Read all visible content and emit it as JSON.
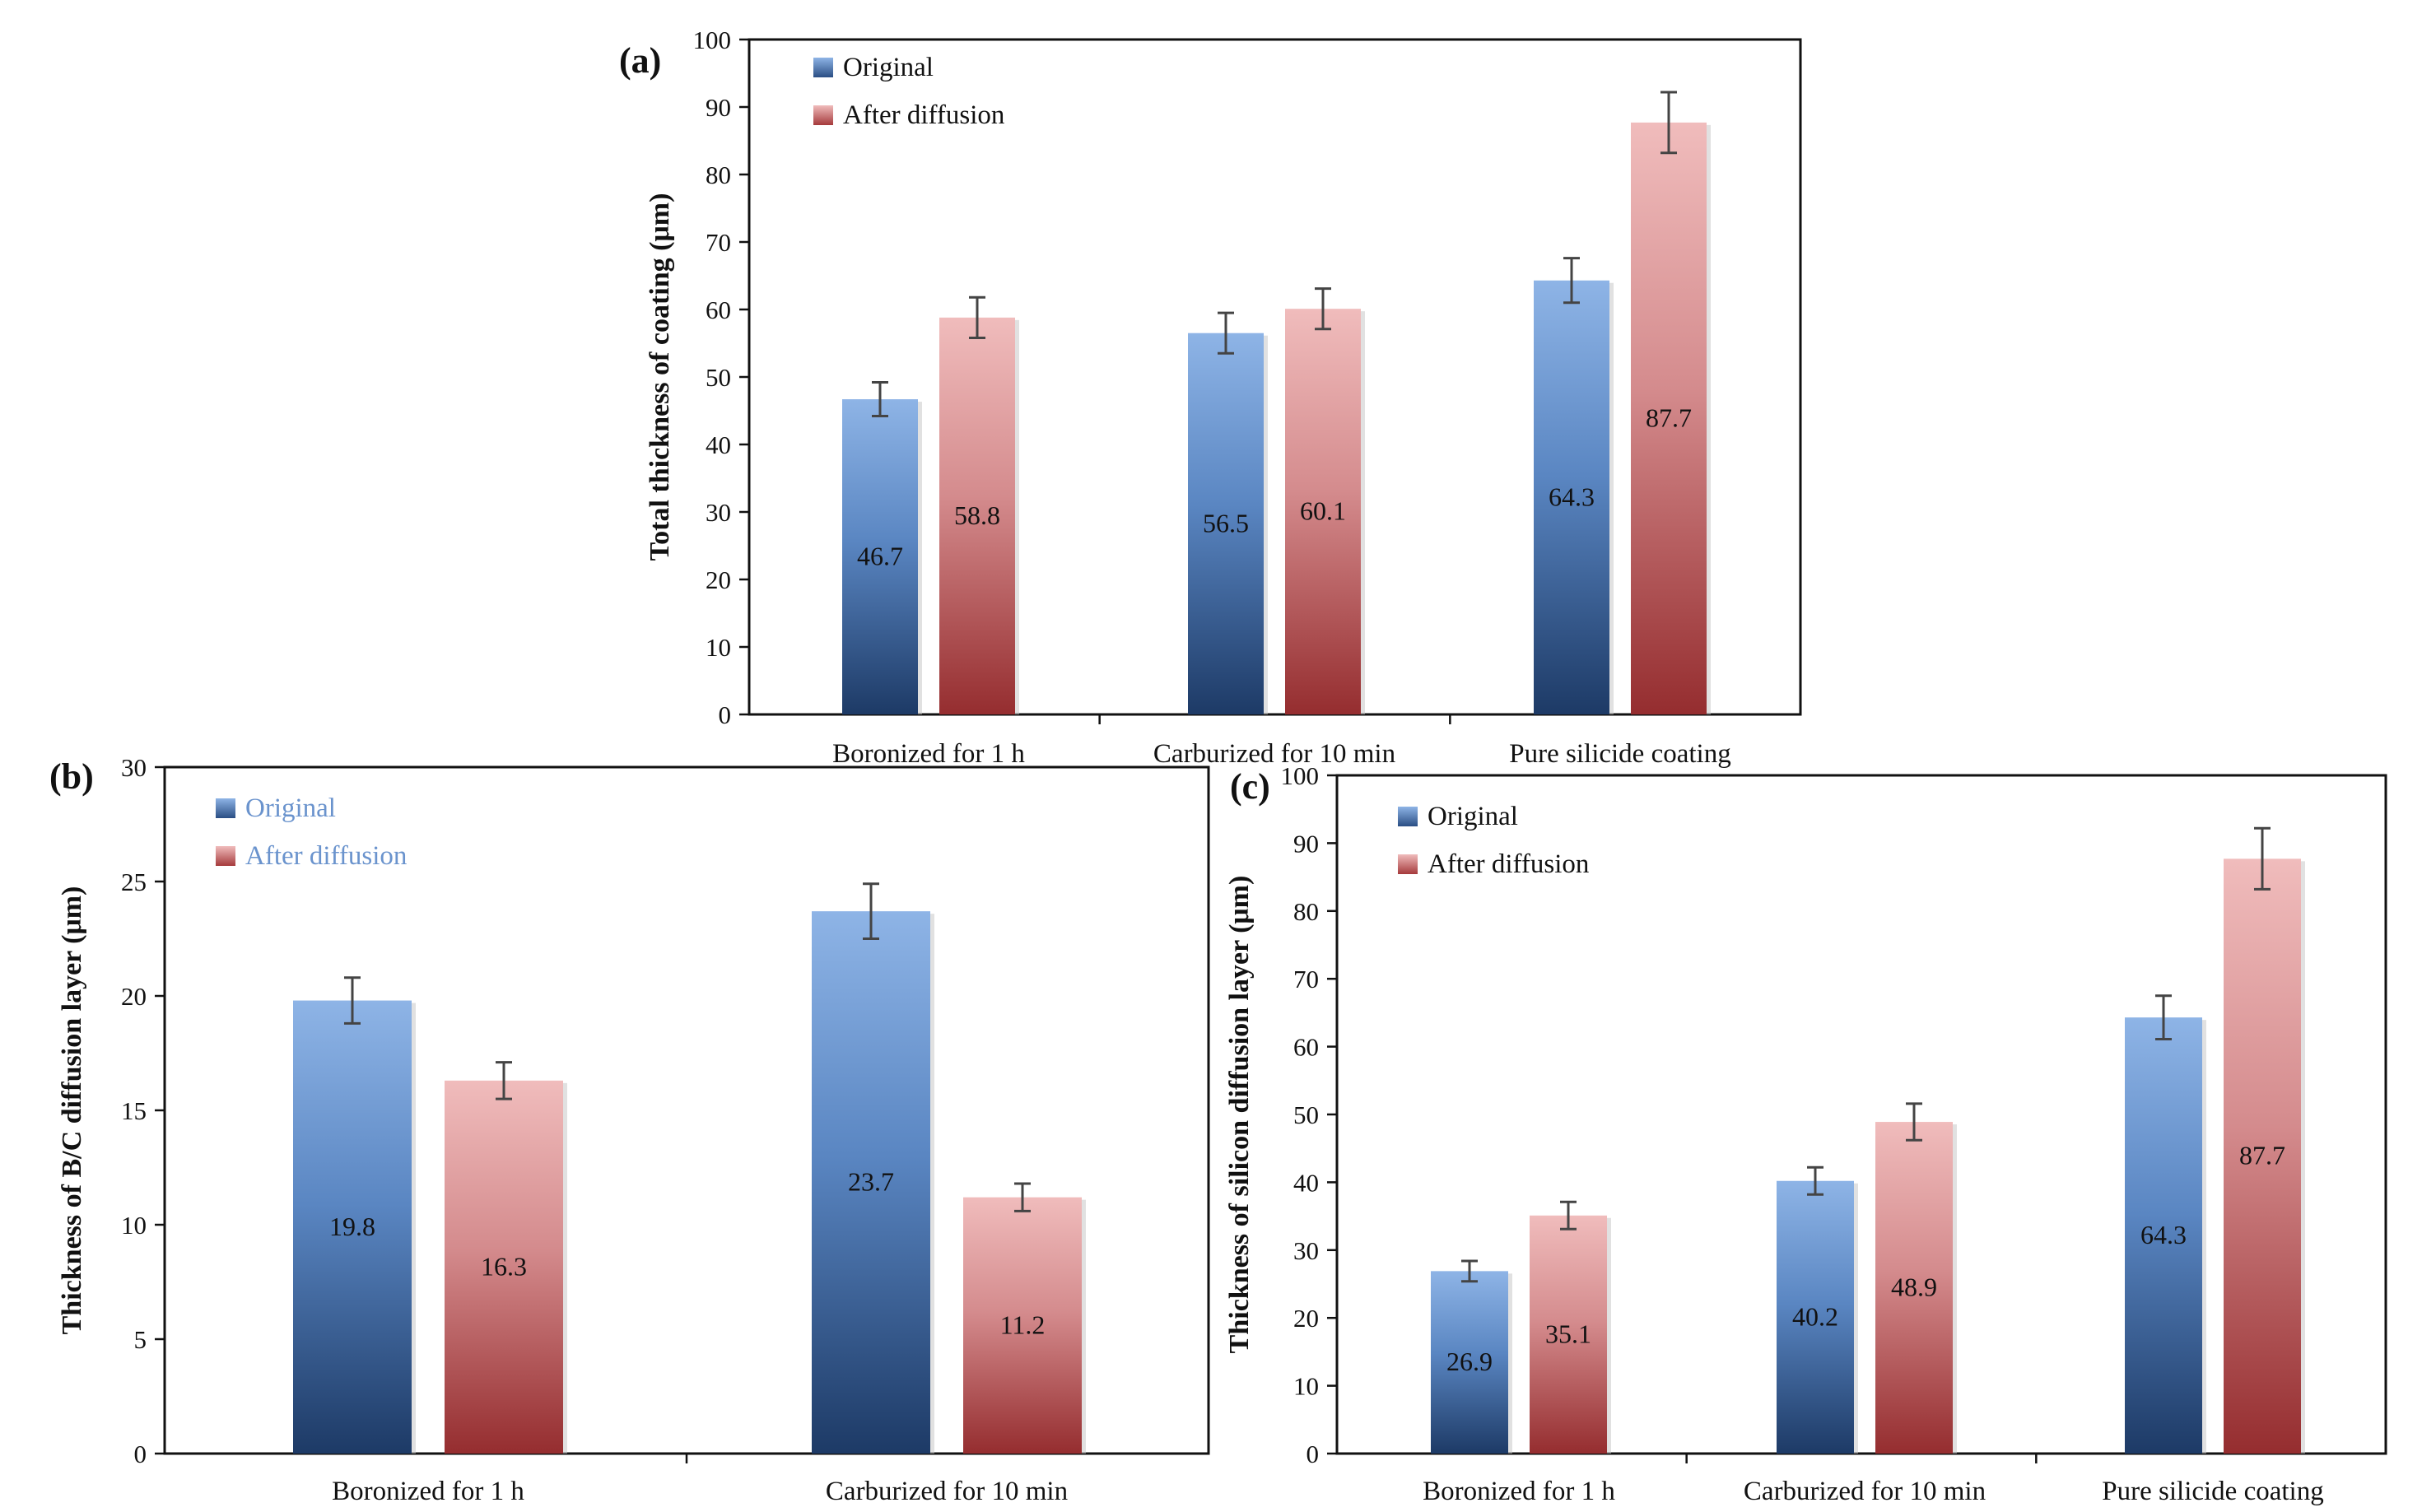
{
  "chart_data": [
    {
      "panel": "(a)",
      "type": "bar",
      "categories": [
        "Boronized for 1 h",
        "Carburized for 10 min",
        "Pure silicide coating"
      ],
      "series": [
        {
          "name": "Original",
          "values": [
            46.7,
            56.5,
            64.3
          ],
          "errors": [
            2.5,
            3.0,
            3.3
          ],
          "color": "#5b8fd0"
        },
        {
          "name": "After diffusion",
          "values": [
            58.8,
            60.1,
            87.7
          ],
          "errors": [
            3.0,
            3.0,
            4.5
          ],
          "color": "#d07d80"
        }
      ],
      "value_labels": [
        "46.7",
        "56.5",
        "64.3",
        "58.8",
        "60.1",
        "87.7"
      ],
      "ylabel": "Total thickness of coating (μm)",
      "yticks": [
        "0",
        "10",
        "20",
        "30",
        "40",
        "50",
        "60",
        "70",
        "80",
        "90",
        "100"
      ],
      "ylim": [
        0,
        100
      ],
      "legend_text_color": "#111111"
    },
    {
      "panel": "(b)",
      "type": "bar",
      "categories": [
        "Boronized for 1 h",
        "Carburized for 10 min"
      ],
      "series": [
        {
          "name": "Original",
          "values": [
            19.8,
            23.7
          ],
          "errors": [
            1.0,
            1.2
          ],
          "color": "#5b8fd0"
        },
        {
          "name": "After diffusion",
          "values": [
            16.3,
            11.2
          ],
          "errors": [
            0.8,
            0.6
          ],
          "color": "#d07d80"
        }
      ],
      "value_labels": [
        "19.8",
        "23.7",
        "16.3",
        "11.2"
      ],
      "ylabel": "Thickness of B/C diffusion layer (μm)",
      "yticks": [
        "0",
        "5",
        "10",
        "15",
        "20",
        "25",
        "30"
      ],
      "ylim": [
        0,
        30
      ],
      "legend_text_color": "#6a93cd"
    },
    {
      "panel": "(c)",
      "type": "bar",
      "categories": [
        "Boronized for 1 h",
        "Carburized for 10 min",
        "Pure silicide coating"
      ],
      "series": [
        {
          "name": "Original",
          "values": [
            26.9,
            40.2,
            64.3
          ],
          "errors": [
            1.5,
            2.0,
            3.2
          ],
          "color": "#5b8fd0"
        },
        {
          "name": "After diffusion",
          "values": [
            35.1,
            48.9,
            87.7
          ],
          "errors": [
            2.0,
            2.7,
            4.5
          ],
          "color": "#d07d80"
        }
      ],
      "value_labels": [
        "26.9",
        "40.2",
        "64.3",
        "35.1",
        "48.9",
        "87.7"
      ],
      "ylabel": "Thickness of silicon diffusion layer (μm)",
      "yticks": [
        "0",
        "10",
        "20",
        "30",
        "40",
        "50",
        "60",
        "70",
        "80",
        "90",
        "100"
      ],
      "ylim": [
        0,
        100
      ],
      "legend_text_color": "#111111"
    }
  ]
}
